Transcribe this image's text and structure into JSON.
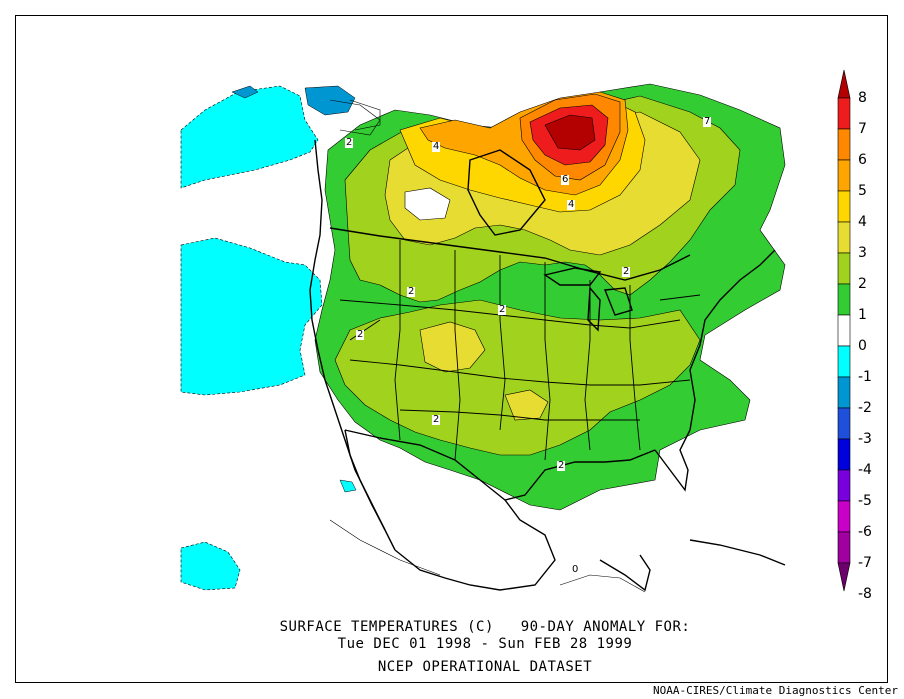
{
  "figure": {
    "title_line_1": "SURFACE TEMPERATURES (C)   90-DAY ANOMALY FOR:",
    "title_line_2": "Tue DEC 01 1998 - Sun FEB 28 1999",
    "title_line_3": "NCEP OPERATIONAL DATASET",
    "credit": "NOAA-CIRES/Climate Diagnostics Center"
  },
  "colorbar": {
    "labels": [
      "8",
      "7",
      "6",
      "5",
      "4",
      "3",
      "2",
      "1",
      "0",
      "-1",
      "-2",
      "-3",
      "-4",
      "-5",
      "-6",
      "-7",
      "-8"
    ],
    "colors": [
      "#b30000",
      "#ee1c1c",
      "#ff8800",
      "#ffa500",
      "#ffd700",
      "#e6dc32",
      "#a0d21e",
      "#33cc33",
      "#ffffff",
      "#00ffff",
      "#0096d2",
      "#1e50dc",
      "#0000dc",
      "#7800dc",
      "#c800c8",
      "#a000a0",
      "#6e006e"
    ]
  },
  "contour_labels": [
    "2",
    "4",
    "6",
    "4",
    "7",
    "2",
    "2",
    "2",
    "2",
    "2",
    "2",
    "0"
  ],
  "colors": {
    "background": "#ffffff",
    "coastline": "#000000"
  }
}
